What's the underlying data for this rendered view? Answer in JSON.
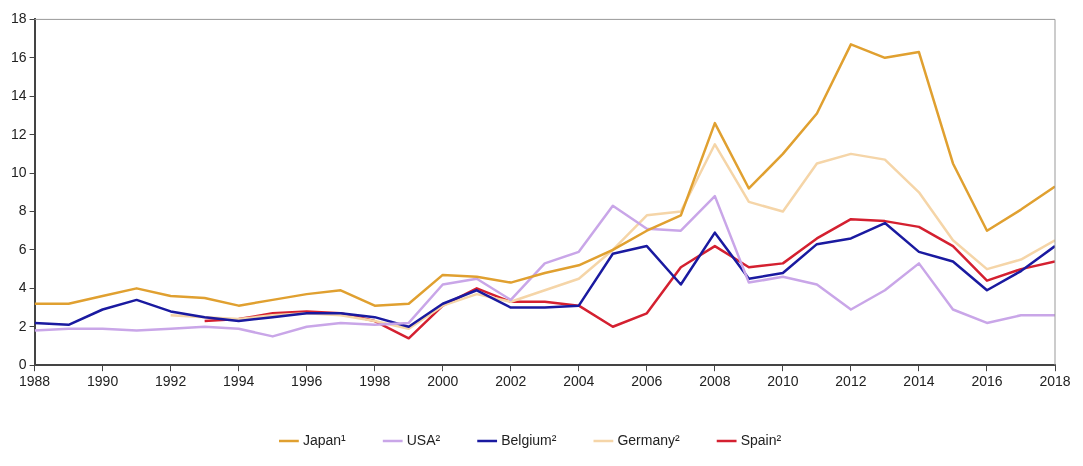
{
  "chart_data": {
    "type": "line",
    "x": [
      1988,
      1989,
      1990,
      1991,
      1992,
      1993,
      1994,
      1995,
      1996,
      1997,
      1998,
      1999,
      2000,
      2001,
      2002,
      2003,
      2004,
      2005,
      2006,
      2007,
      2008,
      2009,
      2010,
      2011,
      2012,
      2013,
      2014,
      2015,
      2016,
      2017,
      2018
    ],
    "series": [
      {
        "name": "Japan¹",
        "color": "#e0a030",
        "values": [
          3.2,
          3.2,
          3.6,
          4.0,
          3.6,
          3.5,
          3.1,
          3.4,
          3.7,
          3.9,
          3.1,
          3.2,
          4.7,
          4.6,
          4.3,
          4.8,
          5.2,
          6.0,
          7.0,
          7.8,
          12.6,
          9.2,
          11.0,
          13.1,
          16.7,
          16.0,
          16.3,
          10.5,
          7.0,
          8.1,
          9.3
        ]
      },
      {
        "name": "USA²",
        "color": "#c9a6e8",
        "values": [
          1.8,
          1.9,
          1.9,
          1.8,
          1.9,
          2.0,
          1.9,
          1.5,
          2.0,
          2.2,
          2.1,
          2.2,
          4.2,
          4.5,
          3.4,
          5.3,
          5.9,
          8.3,
          7.1,
          7.0,
          8.8,
          4.3,
          4.6,
          4.2,
          2.9,
          3.9,
          5.3,
          2.9,
          2.2,
          2.6,
          2.6
        ]
      },
      {
        "name": "Belgium²",
        "color": "#1a1aa0",
        "values": [
          2.2,
          2.1,
          2.9,
          3.4,
          2.8,
          2.5,
          2.3,
          2.5,
          2.7,
          2.7,
          2.5,
          2.0,
          3.2,
          3.9,
          3.0,
          3.0,
          3.1,
          5.8,
          6.2,
          4.2,
          6.9,
          4.5,
          4.8,
          6.3,
          6.6,
          7.4,
          5.9,
          5.4,
          3.9,
          4.9,
          6.2
        ]
      },
      {
        "name": "Germany²",
        "color": "#f5d5a8",
        "values": [
          null,
          null,
          null,
          null,
          2.6,
          2.5,
          2.4,
          2.6,
          2.7,
          2.6,
          2.3,
          1.9,
          3.1,
          3.7,
          3.3,
          3.9,
          4.5,
          6.0,
          7.8,
          8.0,
          11.5,
          8.5,
          8.0,
          10.5,
          11.0,
          10.7,
          9.0,
          6.5,
          5.0,
          5.5,
          6.5
        ]
      },
      {
        "name": "Spain²",
        "color": "#d42030",
        "values": [
          null,
          null,
          null,
          null,
          null,
          2.3,
          2.4,
          2.7,
          2.8,
          2.7,
          2.3,
          1.4,
          3.1,
          4.0,
          3.3,
          3.3,
          3.1,
          2.0,
          2.7,
          5.1,
          6.2,
          5.1,
          5.3,
          6.6,
          7.6,
          7.5,
          7.2,
          6.2,
          4.4,
          5.0,
          5.4
        ]
      }
    ],
    "xlim": [
      1988,
      2018
    ],
    "xticks": [
      1988,
      1990,
      1992,
      1994,
      1996,
      1998,
      2000,
      2002,
      2004,
      2006,
      2008,
      2010,
      2012,
      2014,
      2016,
      2018
    ],
    "ylim": [
      0,
      18
    ],
    "yticks": [
      0,
      2,
      4,
      6,
      8,
      10,
      12,
      14,
      16,
      18
    ],
    "grid": false,
    "legend": "bottom",
    "marker": "none",
    "line_style": "solid"
  }
}
